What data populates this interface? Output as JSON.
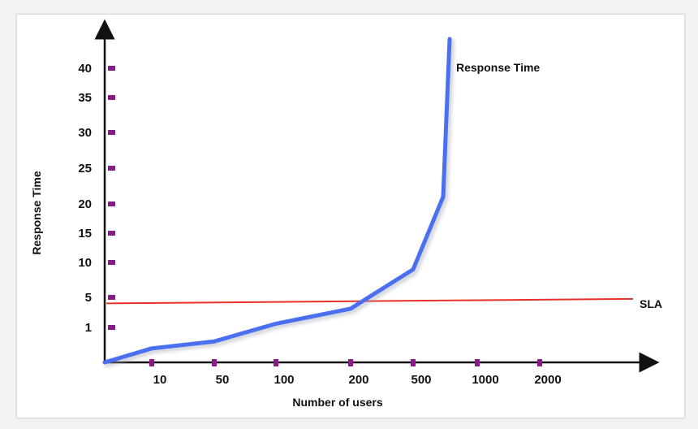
{
  "chart_data": {
    "type": "line",
    "xlabel": "Number of users",
    "ylabel": "Response Time",
    "x_ticks": [
      "10",
      "50",
      "100",
      "200",
      "500",
      "1000",
      "2000"
    ],
    "y_ticks": [
      "1",
      "5",
      "10",
      "15",
      "20",
      "25",
      "30",
      "35",
      "40"
    ],
    "series": [
      {
        "name": "Response Time",
        "color": "#4a6ff0",
        "points": [
          {
            "x": 0,
            "y": 0
          },
          {
            "x": 10,
            "y": 0.4
          },
          {
            "x": 50,
            "y": 0.6
          },
          {
            "x": 100,
            "y": 1.5
          },
          {
            "x": 200,
            "y": 3.5
          },
          {
            "x": 500,
            "y": 9
          },
          {
            "x": 1000,
            "y": 21
          },
          {
            "x": 1000,
            "y": 44
          }
        ]
      }
    ],
    "sla": {
      "label": "SLA",
      "color": "#e8302a",
      "y_start": 4.2,
      "y_end": 4.8
    }
  }
}
